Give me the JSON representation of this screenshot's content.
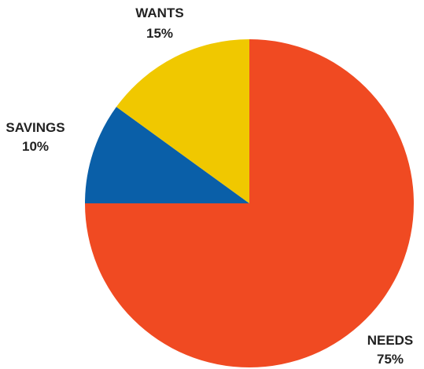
{
  "chart_data": {
    "type": "pie",
    "slices": [
      {
        "label": "NEEDS",
        "value": 75,
        "percent_label": "75%",
        "color": "#f04a22"
      },
      {
        "label": "SAVINGS",
        "value": 10,
        "percent_label": "10%",
        "color": "#0a5fa8"
      },
      {
        "label": "WANTS",
        "value": 15,
        "percent_label": "15%",
        "color": "#f0c800"
      }
    ],
    "start_angle_deg": 0,
    "direction": "clockwise",
    "legend": "none"
  }
}
